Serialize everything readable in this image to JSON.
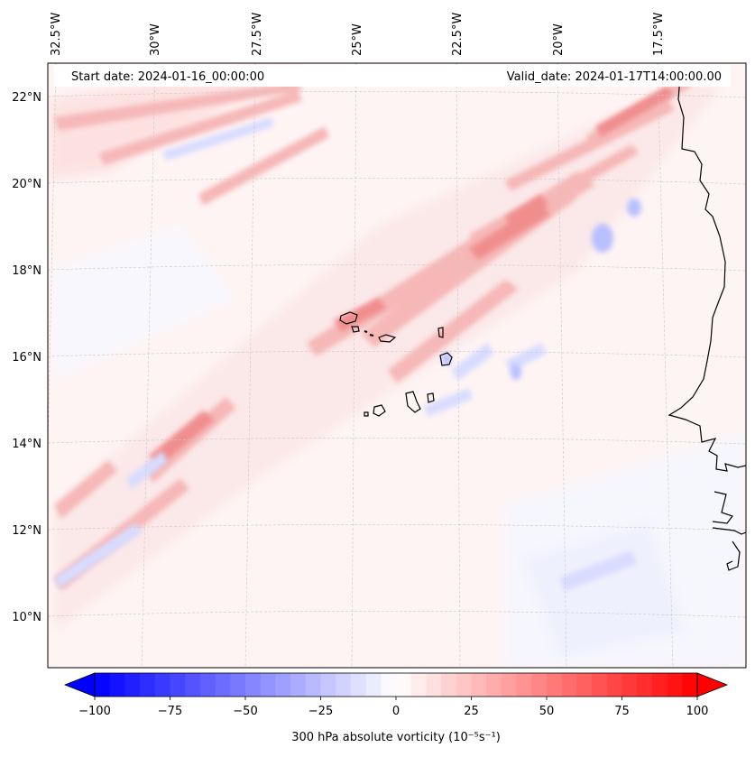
{
  "header": {
    "start_date": "Start date: 2024-01-16_00:00:00",
    "valid_date": "Valid_date: 2024-01-17T14:00:00.00"
  },
  "map": {
    "lon_labels": [
      "32.5°W",
      "30°W",
      "27.5°W",
      "25°W",
      "22.5°W",
      "20°W",
      "17.5°W"
    ],
    "lat_labels": [
      "22°N",
      "20°N",
      "18°N",
      "16°N",
      "14°N",
      "12°N",
      "10°N"
    ],
    "field": "300 hPa absolute vorticity",
    "gridlines": true,
    "coastlines": true
  },
  "colorbar": {
    "label": "300 hPa absolute vorticity (10⁻⁵s⁻¹)",
    "ticks": [
      "−100",
      "−75",
      "−50",
      "−25",
      "0",
      "25",
      "50",
      "75",
      "100"
    ],
    "min": -100,
    "max": 100,
    "extend": "both",
    "colormap": "bwr",
    "color_min": "#0000ff",
    "color_mid": "#ffffff",
    "color_max": "#ff0000"
  }
}
